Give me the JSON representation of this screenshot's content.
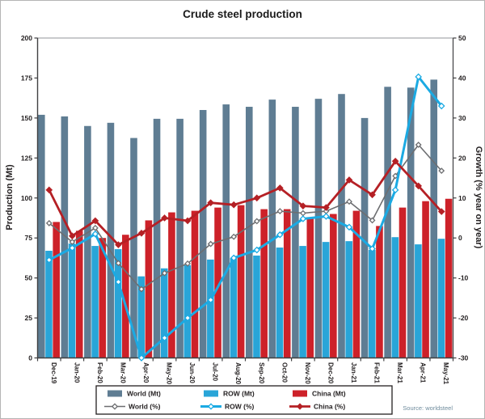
{
  "chart_data": {
    "type": "combo-bar-line",
    "title": "Crude steel production",
    "ylabel_left": "Production (Mt)",
    "ylabel_right": "Growth (% year on year)",
    "ylim_left": [
      0,
      200
    ],
    "ytick_step_left": 25,
    "ylim_right": [
      -30,
      50
    ],
    "ytick_step_right": 10,
    "grid": "off",
    "legend_position": "bottom",
    "categories": [
      "Dec-19",
      "Jan-20",
      "Feb-20",
      "Mar-20",
      "Apr-20",
      "May-20",
      "Jun-20",
      "Jul-20",
      "Aug-20",
      "Sep-20",
      "Oct-20",
      "Nov-20",
      "Dec-20",
      "Jan-21",
      "Feb-21",
      "Mar-21",
      "Apr-21",
      "May-21"
    ],
    "bar_series": [
      {
        "name": "World (Mt)",
        "color": "#5f7d93",
        "values": [
          152,
          151,
          145,
          147,
          137.5,
          149.5,
          149.5,
          155,
          158.5,
          157,
          161.5,
          157,
          162,
          165,
          150,
          169.5,
          169,
          174
        ]
      },
      {
        "name": "ROW (Mt)",
        "color": "#29a5d8",
        "values": [
          67,
          71.5,
          70,
          68,
          51,
          56,
          58,
          61.5,
          62.5,
          64,
          69,
          70,
          72.5,
          73,
          67.5,
          75.5,
          71,
          74.5
        ]
      },
      {
        "name": "China (Mt)",
        "color": "#cd2129",
        "values": [
          85,
          79.5,
          75,
          77,
          86,
          91,
          92,
          94,
          95.5,
          93,
          93,
          88,
          90,
          92,
          82.5,
          94,
          98,
          99.5
        ]
      }
    ],
    "line_series": [
      {
        "name": "World (%)",
        "color": "#6d6e71",
        "marker": "diamond-open",
        "width": 1.6,
        "values": [
          3.7,
          -1,
          2.5,
          -6.3,
          -12.8,
          -8.8,
          -6.4,
          -1.5,
          0.3,
          4.2,
          6.7,
          6.2,
          6.7,
          9.1,
          4.4,
          15.5,
          23.3,
          16.8
        ]
      },
      {
        "name": "ROW (%)",
        "color": "#1baae3",
        "marker": "diamond-open",
        "width": 3,
        "values": [
          -5.5,
          -2.5,
          1,
          -11,
          -30,
          -25,
          -20,
          -15.5,
          -5,
          -3,
          0.8,
          4.8,
          5.4,
          2.7,
          -2.7,
          12,
          40.3,
          33
        ]
      },
      {
        "name": "China (%)",
        "color": "#b52025",
        "marker": "diamond-solid",
        "width": 2.8,
        "values": [
          12,
          0.5,
          4.3,
          -1.7,
          1.2,
          5,
          4.3,
          8.8,
          8.3,
          10,
          12.5,
          8,
          7.6,
          14.5,
          10.8,
          19.2,
          13,
          6.6
        ]
      }
    ],
    "source": "Source: worldsteel",
    "source_color": "#6e8b9c",
    "axis_color": "#404042",
    "text_color": "#231f20"
  }
}
